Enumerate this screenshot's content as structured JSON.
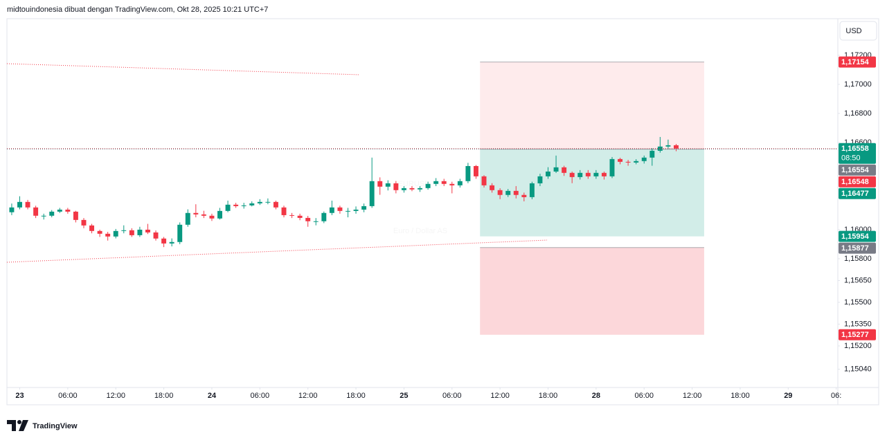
{
  "chart_data": {
    "type": "candlestick",
    "title": "midtouindonesia dibuat dengan TradingView.com, Okt 28, 2025 10:21 UTC+7",
    "watermark": [
      "EURUSD, 30",
      "Euro / Dollar AS"
    ],
    "currency": "USD",
    "brand": "TradingView",
    "up_color": "#089981",
    "down_color": "#f23645",
    "xlim": [
      -1.6,
      102.2
    ],
    "xticks": [
      {
        "value": 0,
        "label": "23"
      },
      {
        "value": 6,
        "label": "06:00"
      },
      {
        "value": 12,
        "label": "12:00"
      },
      {
        "value": 18,
        "label": "18:00"
      },
      24,
      {
        "value": 30,
        "label": "06:00"
      },
      {
        "value": 36,
        "label": "12:00"
      },
      {
        "value": 42,
        "label": "18:00"
      },
      {
        "value": 48,
        "label": "25"
      },
      {
        "value": 54,
        "label": "06:00"
      },
      {
        "value": 60,
        "label": "12:00"
      },
      {
        "value": 66,
        "label": "18:00"
      },
      {
        "value": 72,
        "label": "28"
      },
      {
        "value": 78,
        "label": "06:00"
      },
      {
        "value": 84,
        "label": "12:00"
      },
      {
        "value": 90,
        "label": "18:00"
      },
      {
        "value": 96,
        "label": "29"
      },
      {
        "value": 102,
        "label": "06:"
      }
    ],
    "ylim": [
      1.14914,
      1.17452
    ],
    "yticks": [
      {
        "value": 1.172,
        "label": "1,17200"
      },
      {
        "value": 1.17,
        "label": "1,17000"
      },
      {
        "value": 1.168,
        "label": "1,16800"
      },
      {
        "value": 1.166,
        "label": "1,16600"
      },
      {
        "value": 1.16,
        "label": "1,16000"
      },
      {
        "value": 1.158,
        "label": "1,15800"
      },
      {
        "value": 1.1565,
        "label": "1,15650"
      },
      {
        "value": 1.155,
        "label": "1,15500"
      },
      {
        "value": 1.1535,
        "label": "1,15350"
      },
      {
        "value": 1.152,
        "label": "1,15200"
      },
      {
        "value": 1.1504,
        "label": "1,15040"
      }
    ],
    "x": [
      -1,
      0,
      1,
      2,
      3,
      4,
      5,
      6,
      7,
      8,
      9,
      10,
      11,
      12,
      13,
      14,
      15,
      16,
      17,
      18,
      19,
      20,
      21,
      22,
      23,
      24,
      25,
      26,
      27,
      28,
      29,
      30,
      31,
      32,
      33,
      34,
      35,
      36,
      37,
      38,
      39,
      40,
      41,
      42,
      43,
      44,
      45,
      46,
      47,
      48,
      49,
      50,
      51,
      52,
      53,
      54,
      55,
      56,
      57,
      58,
      59,
      60,
      61,
      62,
      63,
      64,
      65,
      66,
      67,
      68,
      69,
      70,
      71,
      72,
      73,
      74,
      75,
      76,
      77,
      78,
      79,
      80,
      81,
      82
    ],
    "open": [
      1.1612,
      1.16153,
      1.16191,
      1.16153,
      1.16096,
      1.16096,
      1.16124,
      1.16138,
      1.16124,
      1.16067,
      1.16029,
      1.15991,
      1.15972,
      1.15953,
      1.15991,
      1.15996,
      1.15962,
      1.16,
      1.15981,
      1.15939,
      1.15905,
      1.15915,
      1.16034,
      1.16115,
      1.16105,
      1.16096,
      1.16077,
      1.16129,
      1.16172,
      1.16162,
      1.16167,
      1.16181,
      1.16191,
      1.16191,
      1.16153,
      1.161,
      1.16096,
      1.16081,
      1.16058,
      1.16058,
      1.16115,
      1.16153,
      1.16129,
      1.16129,
      1.16138,
      1.16162,
      1.16334,
      1.16296,
      1.16319,
      1.16272,
      1.16286,
      1.16277,
      1.16286,
      1.16315,
      1.16334,
      1.16315,
      1.16305,
      1.16334,
      1.16438,
      1.16367,
      1.16305,
      1.16272,
      1.16239,
      1.16267,
      1.16239,
      1.16224,
      1.16319,
      1.16367,
      1.164,
      1.16429,
      1.16391,
      1.16362,
      1.16391,
      1.16367,
      1.16391,
      1.16367,
      1.16486,
      1.16467,
      1.16462,
      1.16472,
      1.16496,
      1.16543,
      1.16572,
      1.16581
    ],
    "high": [
      1.1618,
      1.1623,
      1.16205,
      1.16165,
      1.1611,
      1.16135,
      1.1615,
      1.1615,
      1.1613,
      1.1608,
      1.1604,
      1.16,
      1.15985,
      1.16005,
      1.1603,
      1.1601,
      1.1602,
      1.1604,
      1.15995,
      1.1595,
      1.1594,
      1.1605,
      1.1614,
      1.16175,
      1.1613,
      1.1611,
      1.1615,
      1.162,
      1.16185,
      1.16185,
      1.16195,
      1.1621,
      1.16215,
      1.162,
      1.16165,
      1.16115,
      1.1611,
      1.16095,
      1.1608,
      1.16125,
      1.162,
      1.16165,
      1.1615,
      1.1616,
      1.1618,
      1.16496,
      1.1636,
      1.1634,
      1.16335,
      1.163,
      1.163,
      1.163,
      1.1633,
      1.16355,
      1.1635,
      1.1633,
      1.1635,
      1.1646,
      1.16445,
      1.16375,
      1.1632,
      1.16285,
      1.1628,
      1.163,
      1.16255,
      1.1633,
      1.16385,
      1.1643,
      1.1651,
      1.1644,
      1.164,
      1.1641,
      1.1641,
      1.1641,
      1.164,
      1.165,
      1.16495,
      1.1648,
      1.16485,
      1.1651,
      1.1656,
      1.16638,
      1.1662,
      1.1659
    ],
    "low": [
      1.161,
      1.1614,
      1.1614,
      1.1608,
      1.1607,
      1.16085,
      1.16115,
      1.1611,
      1.1605,
      1.1601,
      1.15975,
      1.1595,
      1.15925,
      1.1594,
      1.15975,
      1.1595,
      1.1595,
      1.1597,
      1.15925,
      1.1588,
      1.15885,
      1.159,
      1.1602,
      1.16085,
      1.1608,
      1.1606,
      1.1607,
      1.1612,
      1.1615,
      1.16145,
      1.1616,
      1.1617,
      1.16175,
      1.1614,
      1.16085,
      1.1608,
      1.16065,
      1.1602,
      1.1603,
      1.16045,
      1.161,
      1.1611,
      1.16085,
      1.1611,
      1.1612,
      1.1615,
      1.1624,
      1.1627,
      1.1625,
      1.16255,
      1.16265,
      1.1626,
      1.16275,
      1.163,
      1.163,
      1.1625,
      1.1629,
      1.1632,
      1.1635,
      1.1629,
      1.16255,
      1.1621,
      1.16225,
      1.16215,
      1.16195,
      1.1621,
      1.163,
      1.1635,
      1.1639,
      1.1637,
      1.1632,
      1.16345,
      1.1635,
      1.1635,
      1.16345,
      1.16355,
      1.1645,
      1.1644,
      1.1645,
      1.16455,
      1.1644,
      1.1653,
      1.16555,
      1.1654
    ],
    "close": [
      1.16153,
      1.16191,
      1.16153,
      1.16096,
      1.16096,
      1.16124,
      1.16138,
      1.16124,
      1.16067,
      1.16029,
      1.15991,
      1.15972,
      1.15953,
      1.15991,
      1.15996,
      1.15962,
      1.16,
      1.15981,
      1.15939,
      1.15905,
      1.15915,
      1.16034,
      1.16115,
      1.16105,
      1.16096,
      1.16077,
      1.16129,
      1.16172,
      1.16162,
      1.16167,
      1.16181,
      1.16191,
      1.16191,
      1.16153,
      1.161,
      1.16096,
      1.16081,
      1.16058,
      1.16058,
      1.16115,
      1.16153,
      1.16129,
      1.16129,
      1.16138,
      1.16162,
      1.16334,
      1.16296,
      1.16319,
      1.16272,
      1.16286,
      1.16277,
      1.16286,
      1.16315,
      1.16334,
      1.16315,
      1.16305,
      1.16334,
      1.16438,
      1.16367,
      1.16305,
      1.16272,
      1.16239,
      1.16267,
      1.16239,
      1.16224,
      1.16319,
      1.16367,
      1.164,
      1.16429,
      1.16391,
      1.16362,
      1.16391,
      1.16367,
      1.16391,
      1.16367,
      1.16486,
      1.16467,
      1.16462,
      1.16472,
      1.16496,
      1.16543,
      1.16572,
      1.16581,
      1.16558
    ],
    "zone_x": [
      57.5,
      85.5
    ],
    "zones": [
      {
        "from": 1.17154,
        "to": 1.16554,
        "color": "#f23645",
        "opacity": 0.1
      },
      {
        "from": 1.16554,
        "to": 1.15954,
        "color": "#089981",
        "opacity": 0.18
      },
      {
        "from": 1.15877,
        "to": 1.15277,
        "color": "#f23645",
        "opacity": 0.2
      }
    ],
    "price_labels": [
      {
        "value": 1.17154,
        "label": "1,17154",
        "color": "#f23645"
      },
      {
        "value": 1.16558,
        "label": "1,16558",
        "sub": "08:50",
        "color": "#089981",
        "line": "#b22833"
      },
      {
        "value": 1.16554,
        "label": "1,16554",
        "color": "#787b86",
        "line": "#787b86"
      },
      {
        "value": 1.16548,
        "label": "1,16548",
        "color": "#f23645"
      },
      {
        "value": 1.16477,
        "label": "1,16477",
        "color": "#089981"
      },
      {
        "value": 1.15954,
        "label": "1,15954",
        "color": "#089981"
      },
      {
        "value": 1.15877,
        "label": "1,15877",
        "color": "#787b86"
      },
      {
        "value": 1.15277,
        "label": "1,15277",
        "color": "#f23645"
      }
    ]
  }
}
